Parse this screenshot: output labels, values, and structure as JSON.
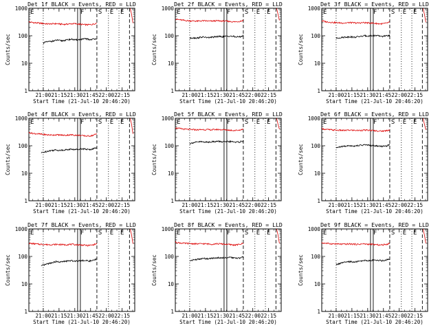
{
  "chart_data": {
    "type": "line",
    "panels": [
      {
        "title": "Det 1f BLACK = Events, RED = LLD",
        "black_start": "21:00",
        "black_values": [
          55,
          60,
          62,
          65,
          70,
          65,
          68,
          72,
          75,
          70,
          72,
          75,
          78,
          72,
          75,
          80
        ],
        "red_values": [
          320,
          300,
          290,
          280,
          270,
          270,
          275,
          265,
          260,
          270,
          275,
          265,
          255,
          250,
          260,
          290
        ]
      },
      {
        "title": "Det 2f BLACK = Events, RED = LLD",
        "black_start": "21:00",
        "black_values": [
          80,
          85,
          82,
          88,
          90,
          85,
          88,
          90,
          95,
          92,
          95,
          98,
          95,
          90,
          92,
          100
        ],
        "red_values": [
          400,
          380,
          360,
          350,
          345,
          340,
          350,
          345,
          340,
          350,
          345,
          340,
          330,
          320,
          330,
          360
        ]
      },
      {
        "title": "Det 3f BLACK = Events, RED = LLD",
        "black_start": "21:00",
        "black_values": [
          80,
          85,
          88,
          90,
          92,
          88,
          92,
          95,
          100,
          98,
          100,
          102,
          98,
          95,
          98,
          105
        ],
        "red_values": [
          350,
          320,
          310,
          300,
          295,
          290,
          300,
          295,
          290,
          300,
          295,
          290,
          280,
          270,
          280,
          310
        ]
      },
      {
        "title": "Det 4f BLACK = Events, RED = LLD",
        "black_start": "20:58",
        "black_values": [
          55,
          60,
          65,
          68,
          70,
          68,
          70,
          72,
          75,
          72,
          75,
          78,
          75,
          72,
          78,
          85
        ],
        "red_values": [
          300,
          280,
          270,
          260,
          250,
          245,
          250,
          245,
          240,
          250,
          245,
          240,
          230,
          225,
          235,
          270
        ]
      },
      {
        "title": "Det 5f BLACK = Events, RED = LLD",
        "black_start": "21:00",
        "black_values": [
          120,
          130,
          135,
          140,
          138,
          135,
          140,
          142,
          145,
          140,
          138,
          142,
          140,
          135,
          138,
          150
        ],
        "red_values": [
          450,
          420,
          400,
          390,
          385,
          380,
          390,
          385,
          380,
          390,
          385,
          380,
          370,
          360,
          370,
          400
        ]
      },
      {
        "title": "Det 6f BLACK = Events, RED = LLD",
        "black_start": "21:00",
        "black_values": [
          85,
          90,
          95,
          98,
          100,
          98,
          102,
          105,
          108,
          105,
          102,
          100,
          98,
          95,
          98,
          110
        ],
        "red_values": [
          420,
          390,
          380,
          370,
          365,
          360,
          370,
          365,
          360,
          370,
          365,
          360,
          350,
          340,
          350,
          380
        ]
      },
      {
        "title": "Det 7f BLACK = Events, RED = LLD",
        "black_start": "20:58",
        "black_values": [
          45,
          50,
          55,
          60,
          65,
          62,
          65,
          68,
          70,
          68,
          70,
          72,
          70,
          68,
          72,
          80
        ],
        "red_values": [
          300,
          290,
          280,
          275,
          270,
          268,
          275,
          270,
          265,
          275,
          270,
          265,
          258,
          250,
          260,
          290
        ]
      },
      {
        "title": "Det 8f BLACK = Events, RED = LLD",
        "black_start": "21:00",
        "black_values": [
          70,
          75,
          78,
          80,
          85,
          82,
          85,
          88,
          90,
          88,
          90,
          92,
          90,
          85,
          88,
          95
        ],
        "red_values": [
          330,
          310,
          300,
          295,
          290,
          285,
          290,
          285,
          280,
          290,
          285,
          280,
          270,
          260,
          270,
          300
        ]
      },
      {
        "title": "Det 9f BLACK = Events, RED = LLD",
        "black_start": "21:00",
        "black_values": [
          50,
          55,
          60,
          62,
          65,
          62,
          65,
          68,
          72,
          70,
          72,
          75,
          72,
          70,
          74,
          82
        ],
        "red_values": [
          310,
          300,
          290,
          285,
          280,
          278,
          285,
          280,
          275,
          285,
          280,
          275,
          268,
          260,
          270,
          300
        ]
      }
    ],
    "series": [
      {
        "name": "BLACK = Events",
        "color": "#000000"
      },
      {
        "name": "RED = LLD",
        "color": "#dd0000"
      }
    ],
    "xlabel": "Start Time (21-Jul-10 20:46:20)",
    "ylabel": "Counts/sec",
    "x_ticks": [
      "21:00",
      "21:15",
      "21:30",
      "21:45",
      "22:00",
      "22:15"
    ],
    "xlim": [
      "20:46:20",
      "22:27"
    ],
    "y_ticks": [
      "1",
      "10",
      "100",
      "1000"
    ],
    "ylim": [
      1,
      1000
    ],
    "y_scale": "log",
    "grid": false,
    "markers": [
      {
        "label": "E",
        "time": "20:46:20",
        "style": "dotted"
      },
      {
        "label": "F",
        "time": "21:34",
        "style": "solid-double"
      },
      {
        "label": "S",
        "time": "21:51",
        "style": "dashed"
      },
      {
        "label": "E",
        "time": "22:02",
        "style": "dotted"
      },
      {
        "label": "E",
        "time": "22:12",
        "style": "dotted"
      }
    ],
    "extra_lines": [
      {
        "time": "21:00",
        "style": "dotted"
      },
      {
        "time": "22:22",
        "style": "dashed"
      }
    ]
  }
}
